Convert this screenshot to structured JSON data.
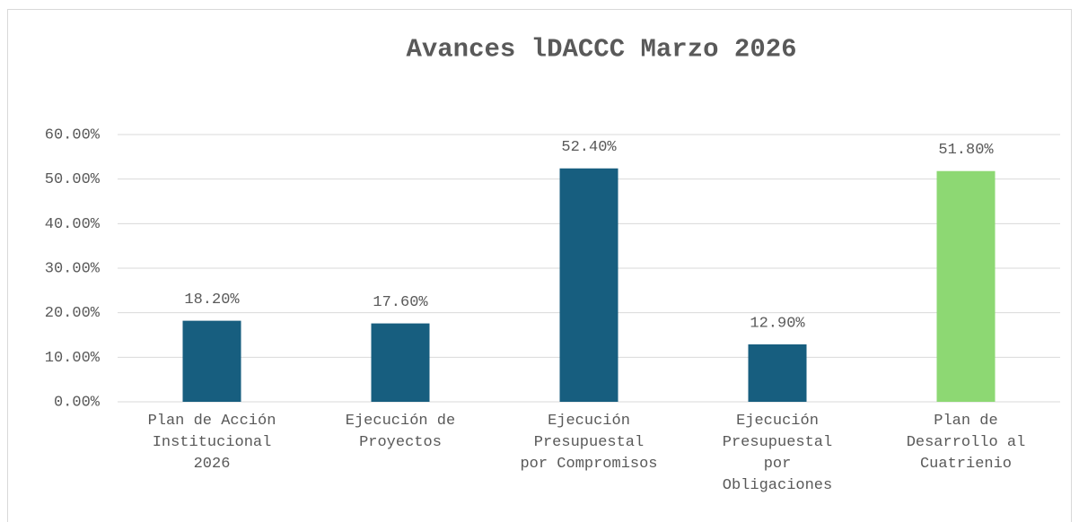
{
  "chart_data": {
    "type": "bar",
    "title": "Avances lDACCC Marzo 2026",
    "categories": [
      "Plan de Acción Institucional 2026",
      "Ejecución de Proyectos",
      "Ejecución Presupuestal por Compromisos",
      "Ejecución Presupuestal por Obligaciones",
      "Plan de Desarrollo al Cuatrienio"
    ],
    "values": [
      18.2,
      17.6,
      52.4,
      12.9,
      51.8
    ],
    "value_labels": [
      "18.20%",
      "17.60%",
      "52.40%",
      "12.90%",
      "51.80%"
    ],
    "colors": [
      "#175e7f",
      "#175e7f",
      "#175e7f",
      "#175e7f",
      "#8dd873"
    ],
    "ylim": [
      0,
      60
    ],
    "yticks": [
      {
        "value": 0,
        "label": "0.00%"
      },
      {
        "value": 10,
        "label": "10.00%"
      },
      {
        "value": 20,
        "label": "20.00%"
      },
      {
        "value": 30,
        "label": "30.00%"
      },
      {
        "value": 40,
        "label": "40.00%"
      },
      {
        "value": 50,
        "label": "50.00%"
      },
      {
        "value": 60,
        "label": "60.00%"
      }
    ],
    "grid": true
  }
}
